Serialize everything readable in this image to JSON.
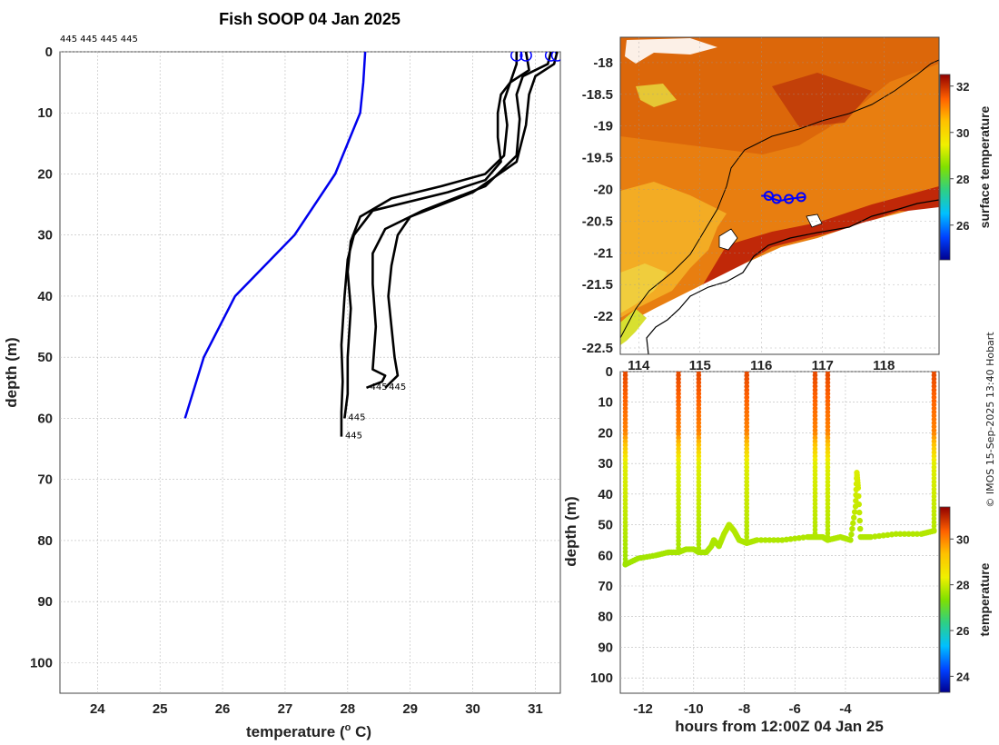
{
  "title": "Fish SOOP 04 Jan 2025",
  "credit": "© IMOS 15-Sep-2025 13:40 Hobart",
  "profile_ids": "445 445 445 445",
  "end_labels": [
    "445",
    "445",
    "445",
    "445"
  ],
  "colors": {
    "reference": "#0000ee",
    "profiles": "#000000",
    "grid": "#bbbbbb"
  },
  "chart_data": [
    {
      "type": "line",
      "name": "temperature-profiles",
      "xlabel": "temperature (° C)",
      "ylabel": "depth (m)",
      "xlim": [
        23.4,
        31.4
      ],
      "ylim": [
        105,
        0
      ],
      "xticks": [
        24,
        25,
        26,
        27,
        28,
        29,
        30,
        31
      ],
      "yticks": [
        0,
        10,
        20,
        30,
        40,
        50,
        60,
        70,
        80,
        90,
        100
      ],
      "reference_profile": {
        "name": "climatology",
        "temperature": [
          28.28,
          28.25,
          28.2,
          27.8,
          27.15,
          26.2,
          25.7,
          25.4
        ],
        "depth": [
          0,
          5,
          10,
          20,
          30,
          40,
          50,
          60
        ]
      },
      "series": [
        {
          "name": "profile 1",
          "temperature": [
            30.7,
            30.7,
            30.6,
            30.45,
            30.4,
            30.4,
            30.45,
            30.2,
            29.6,
            28.4,
            28.1,
            28.0,
            27.95,
            27.9,
            27.92,
            27.9,
            27.9
          ],
          "depth": [
            0,
            2,
            5,
            7,
            10,
            14,
            18,
            21,
            23,
            26,
            30,
            34,
            40,
            48,
            54,
            59,
            63
          ]
        },
        {
          "name": "profile 2",
          "temperature": [
            30.85,
            30.9,
            30.6,
            30.5,
            30.55,
            30.5,
            30.2,
            29.5,
            28.7,
            28.2,
            28.05,
            28.0,
            28.05,
            28.0,
            28.0,
            27.95
          ],
          "depth": [
            0,
            3,
            5,
            8,
            12,
            17,
            20,
            22,
            24,
            27,
            31,
            36,
            42,
            50,
            56,
            60
          ]
        },
        {
          "name": "profile 3",
          "temperature": [
            31.25,
            31.2,
            30.8,
            30.7,
            30.75,
            30.7,
            30.2,
            29.2,
            28.6,
            28.4,
            28.4,
            28.45,
            28.4,
            28.6,
            28.55,
            28.3
          ],
          "depth": [
            0,
            2,
            4,
            7,
            11,
            17,
            22,
            26,
            29,
            33,
            38,
            45,
            52,
            53,
            54,
            55
          ]
        },
        {
          "name": "profile 4",
          "temperature": [
            31.35,
            31.3,
            31.0,
            30.9,
            30.85,
            30.7,
            30.0,
            29.0,
            28.8,
            28.7,
            28.65,
            28.7,
            28.75,
            28.8,
            28.7,
            28.6
          ],
          "depth": [
            0,
            2,
            4,
            7,
            12,
            18,
            23,
            27,
            30,
            35,
            40,
            45,
            50,
            53,
            54,
            55
          ]
        }
      ]
    },
    {
      "type": "heatmap",
      "name": "surface-temperature-map",
      "colorbar_label": "surface temperature",
      "colorbar_ticks": [
        26,
        28,
        30,
        32
      ],
      "clim": [
        24.5,
        32.5
      ],
      "xlim": [
        113.7,
        118.9
      ],
      "ylim": [
        -22.6,
        -17.6
      ],
      "xticks": [
        114,
        115,
        116,
        117,
        118
      ],
      "yticks": [
        -18,
        -18.5,
        -19,
        -19.5,
        -20,
        -20.5,
        -21,
        -21.5,
        -22,
        -22.5
      ],
      "track": {
        "lon": [
          116.0,
          116.1,
          116.2,
          116.3,
          116.45,
          116.6,
          116.7
        ],
        "lat": [
          -20.1,
          -20.1,
          -20.15,
          -20.18,
          -20.15,
          -20.13,
          -20.12
        ]
      },
      "profile_positions": {
        "lon": [
          116.12,
          116.25,
          116.45,
          116.65
        ],
        "lat": [
          -20.1,
          -20.15,
          -20.15,
          -20.12
        ]
      }
    },
    {
      "type": "scatter",
      "name": "depth-time-section",
      "xlabel": "hours from 12:00Z 04 Jan 25",
      "ylabel": "depth (m)",
      "xlim": [
        -12.9,
        -0.3
      ],
      "ylim": [
        105,
        0
      ],
      "xticks": [
        -12,
        -10,
        -8,
        -6,
        -4
      ],
      "yticks": [
        0,
        10,
        20,
        30,
        40,
        50,
        60,
        70,
        80,
        90,
        100
      ],
      "colorbar_label": "temperature",
      "colorbar_ticks": [
        24,
        26,
        28,
        30
      ],
      "clim": [
        23.3,
        31.4
      ],
      "casts": [
        {
          "time": -12.7,
          "bottom": 63
        },
        {
          "time": -10.6,
          "bottom": 59
        },
        {
          "time": -9.8,
          "bottom": 59
        },
        {
          "time": -7.9,
          "bottom": 56
        },
        {
          "time": -5.2,
          "bottom": 54
        },
        {
          "time": -4.7,
          "bottom": 55
        },
        {
          "time": -0.5,
          "bottom": 52
        }
      ],
      "bottom_trace": {
        "time": [
          -12.7,
          -12.2,
          -11.5,
          -11.0,
          -10.6,
          -10.3,
          -10.0,
          -9.8,
          -9.5,
          -9.3,
          -9.2,
          -9.0,
          -8.8,
          -8.6,
          -8.4,
          -8.2,
          -7.9,
          -7.5,
          -6.5,
          -5.5,
          -5.2,
          -4.9,
          -4.7,
          -4.2,
          -3.8,
          -3.6,
          -3.55,
          -3.5,
          -3.4,
          -3.0,
          -2.0,
          -1.0,
          -0.5
        ],
        "depth": [
          63,
          61,
          60,
          59,
          59,
          58,
          58,
          59,
          59,
          57,
          55,
          57,
          53,
          50,
          52,
          55,
          56,
          55,
          55,
          54,
          54,
          54,
          55,
          54,
          55,
          44,
          33,
          38,
          54,
          54,
          53,
          53,
          52
        ]
      }
    }
  ]
}
